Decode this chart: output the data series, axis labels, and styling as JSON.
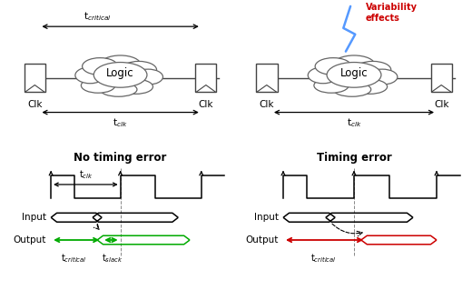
{
  "title_left": "No timing error",
  "title_right": "Timing error",
  "bg_color": "#ffffff",
  "variability_color": "#cc0000",
  "lightning_color": "#5599ff",
  "output_left_color": "#00aa00",
  "output_right_color": "#cc0000",
  "clk_label": "t$_{clk}$",
  "tclk_label": "t$_{clk}$",
  "tcritical_label_top": "t$_{critical}$",
  "tcritical_label_bottom_left": "t$_{critical}$",
  "tslack_label": "t$_{slack}$",
  "tcritical_label_bottom_right": "t$_{critical}$",
  "logic_label": "Logic",
  "clk_text": "Clk",
  "variability_text": "Variability\neffects"
}
